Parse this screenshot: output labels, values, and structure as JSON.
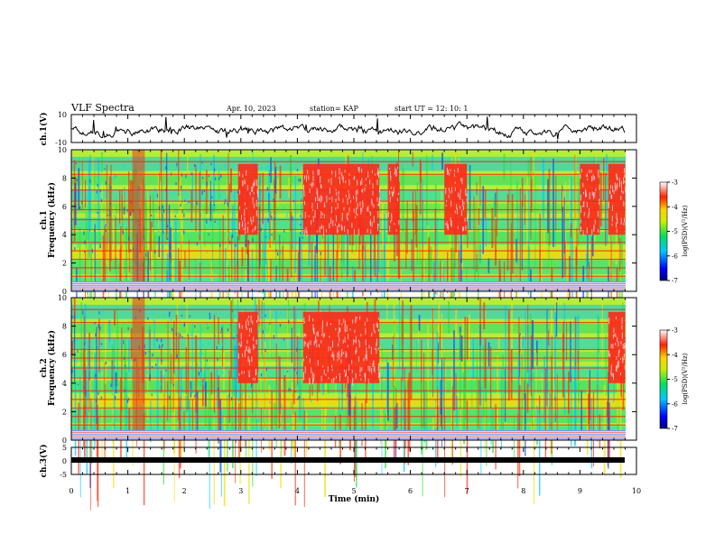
{
  "header": {
    "title": "VLF Spectra",
    "date": "Apr. 10, 2023",
    "station": "station= KAP",
    "start": "start  UT =   12: 10: 1"
  },
  "chart_data": [
    {
      "type": "line",
      "ylabel": "ch.1(V)",
      "ylim": [
        -10,
        10
      ],
      "yticks": [
        "10",
        "-10"
      ],
      "xlim": [
        0,
        10
      ]
    },
    {
      "type": "heatmap",
      "ylabel_top": "ch.1",
      "ylabel": "Frequency (kHz)",
      "ylim": [
        0,
        10
      ],
      "yticks": [
        "0",
        "2",
        "4",
        "6",
        "8",
        "10"
      ],
      "xlim": [
        0,
        10
      ],
      "colorbar": {
        "label": "log(PSD)(V²/Hz)",
        "range": [
          -7,
          -3
        ],
        "ticks": [
          "-3",
          "-4",
          "-5",
          "-6",
          "-7"
        ]
      },
      "bursts": [
        [
          2.95,
          3.3
        ],
        [
          4.1,
          5.45
        ],
        [
          5.6,
          5.8
        ],
        [
          6.6,
          7.0
        ],
        [
          9.0,
          9.35
        ],
        [
          9.5,
          9.8
        ]
      ]
    },
    {
      "type": "heatmap",
      "ylabel_top": "ch.2",
      "ylabel": "Frequency (kHz)",
      "ylim": [
        0,
        10
      ],
      "yticks": [
        "0",
        "2",
        "4",
        "6",
        "8",
        "10"
      ],
      "xlim": [
        0,
        10
      ],
      "colorbar": {
        "label": "log(PSD)(V²/Hz)",
        "range": [
          -7,
          -3
        ],
        "ticks": [
          "-3",
          "-4",
          "-5",
          "-6",
          "-7"
        ]
      },
      "bursts": [
        [
          2.95,
          3.3
        ],
        [
          4.1,
          5.45
        ],
        [
          9.5,
          9.8
        ]
      ]
    },
    {
      "type": "line",
      "ylabel": "ch.3(V)",
      "ylim": [
        -5,
        5
      ],
      "yticks": [
        "5",
        "0",
        "-5"
      ],
      "xlim": [
        0,
        10
      ],
      "xlabel": "Time (min)",
      "xticks": [
        "0",
        "1",
        "2",
        "3",
        "4",
        "5",
        "6",
        "7",
        "8",
        "9",
        "10"
      ]
    }
  ]
}
